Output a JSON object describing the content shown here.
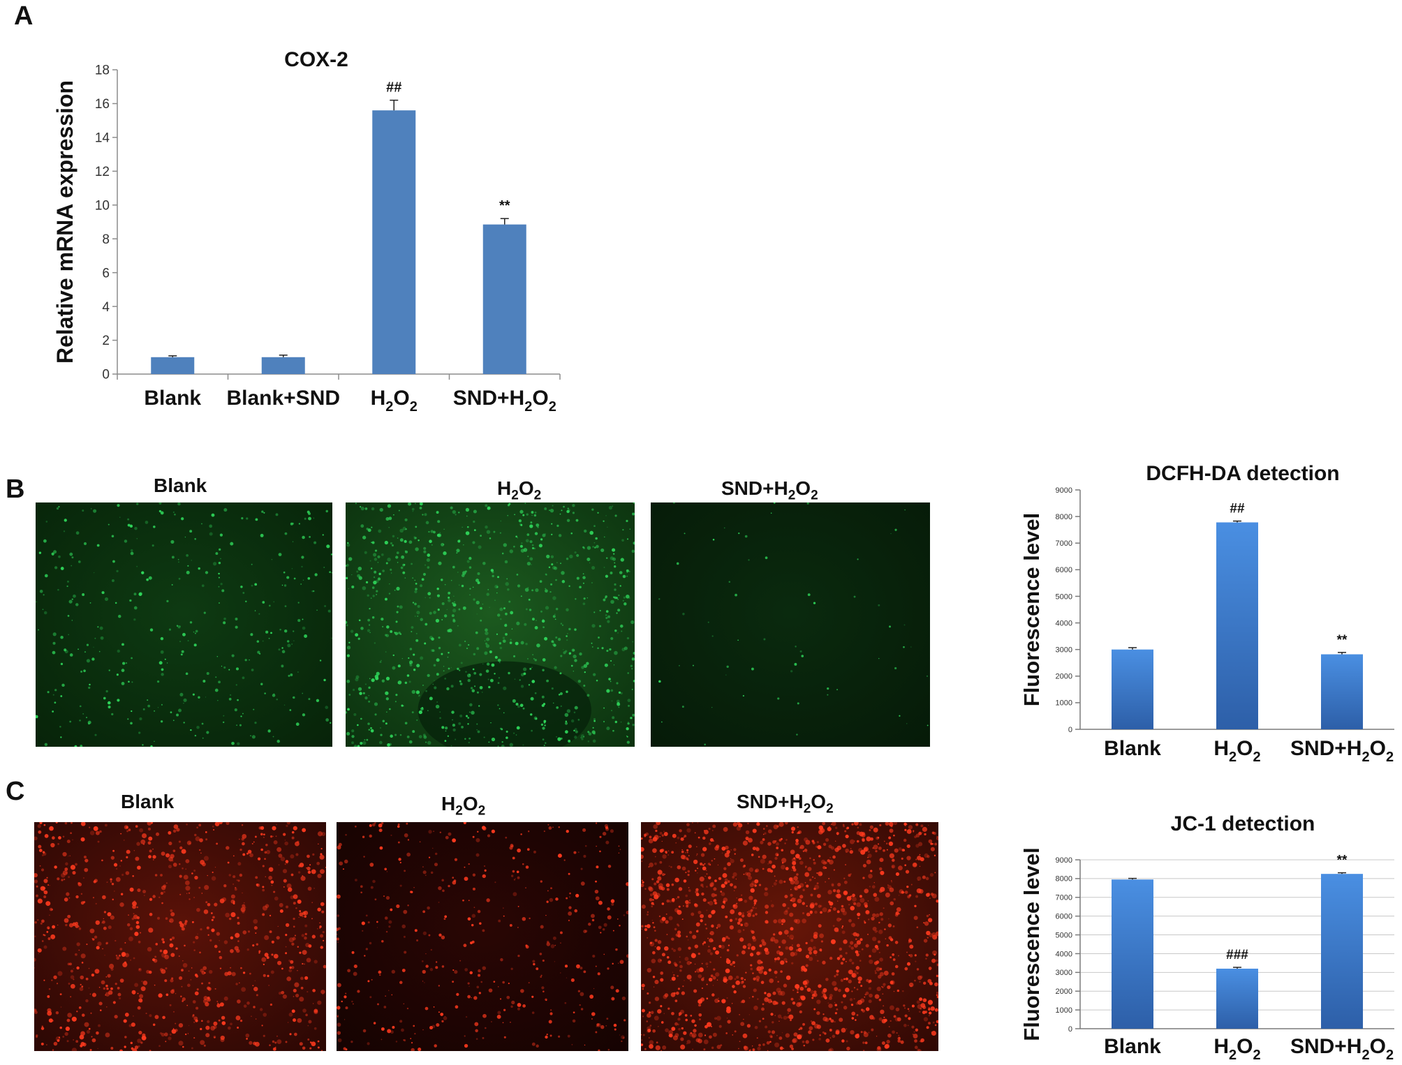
{
  "panels": {
    "a": "A",
    "b": "B",
    "c": "C"
  },
  "micrographs": {
    "b": {
      "labels": [
        "Blank",
        "H2O2",
        "SND+H2O2"
      ],
      "stain_color": "#2fd65a"
    },
    "c": {
      "labels": [
        "Blank",
        "H2O2",
        "SND+H2O2"
      ],
      "stain_color": "#ff3a1e"
    }
  },
  "chart_data": [
    {
      "id": "cox2",
      "type": "bar",
      "title": "COX-2",
      "ylabel": "Relative mRNA expression",
      "xlabel": "",
      "categories": [
        "Blank",
        "Blank+SND",
        "H2O2",
        "SND+H2O2"
      ],
      "values": [
        1.0,
        1.0,
        15.6,
        8.85
      ],
      "errors": [
        0.08,
        0.12,
        0.6,
        0.35
      ],
      "annotations": [
        "",
        "",
        "##",
        "**"
      ],
      "ylim": [
        0,
        18
      ],
      "yticks": [
        0,
        2,
        4,
        6,
        8,
        10,
        12,
        14,
        16,
        18
      ],
      "grid": false,
      "bar_color": "#4f81bd"
    },
    {
      "id": "dcfh",
      "type": "bar",
      "title": "DCFH-DA detection",
      "ylabel": "Fluorescence level",
      "xlabel": "",
      "categories": [
        "Blank",
        "H2O2",
        "SND+H2O2"
      ],
      "values": [
        3000,
        7780,
        2820
      ],
      "errors": [
        70,
        50,
        70
      ],
      "annotations": [
        "",
        "##",
        "**"
      ],
      "ylim": [
        0,
        9000
      ],
      "yticks": [
        0,
        1000,
        2000,
        3000,
        4000,
        5000,
        6000,
        7000,
        8000,
        9000
      ],
      "grid": false,
      "bar_color": "#3f7bd0"
    },
    {
      "id": "jc1",
      "type": "bar",
      "title": "JC-1 detection",
      "ylabel": "Fluorescence level",
      "xlabel": "",
      "categories": [
        "Blank",
        "H2O2",
        "SND+H2O2"
      ],
      "values": [
        7950,
        3200,
        8250
      ],
      "errors": [
        60,
        70,
        60
      ],
      "annotations": [
        "",
        "###",
        "**"
      ],
      "ylim": [
        0,
        9000
      ],
      "yticks": [
        0,
        1000,
        2000,
        3000,
        4000,
        5000,
        6000,
        7000,
        8000,
        9000
      ],
      "grid": true,
      "bar_color": "#3f7bd0"
    }
  ]
}
